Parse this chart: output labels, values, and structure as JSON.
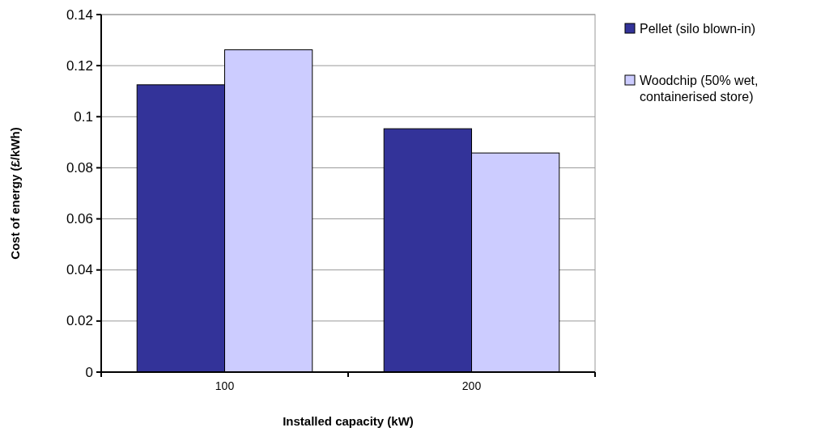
{
  "chart_data": {
    "type": "bar",
    "xlabel": "Installed capacity (kW)",
    "ylabel": "Cost of energy (£/kWh)",
    "categories": [
      "100",
      "200"
    ],
    "series": [
      {
        "name": "Pellet (silo blown-in)",
        "color": "#333399",
        "values": [
          0.1125,
          0.0953
        ]
      },
      {
        "name": "Woodchip (50% wet, containerised store)",
        "color": "#ccccff",
        "values": [
          0.1262,
          0.0858
        ]
      }
    ],
    "ylim": [
      0,
      0.14
    ],
    "yticks": [
      0,
      0.02,
      0.04,
      0.06,
      0.08,
      0.1,
      0.12,
      0.14
    ],
    "grid": "y",
    "legend": "right"
  }
}
